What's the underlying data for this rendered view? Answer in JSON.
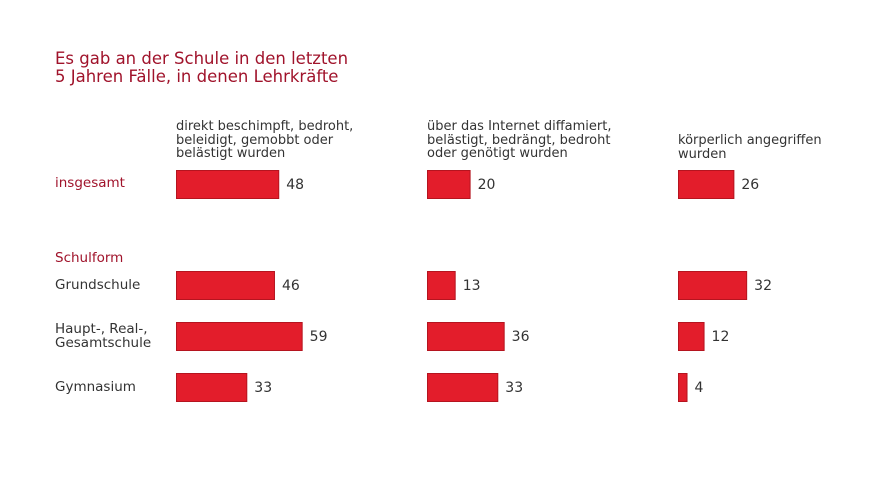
{
  "title": "Es gab an der Schule in den letzten\n5 Jahren Fälle, in denen Lehrkräfte",
  "section_label": "Schulform",
  "colors": {
    "accent": "#a0132b",
    "bar": "#e31d2b",
    "text": "#333333"
  },
  "chart_data": {
    "type": "bar",
    "orientation": "horizontal",
    "title": "Es gab an der Schule in den letzten 5 Jahren Fälle, in denen Lehrkräfte",
    "unit": "percent",
    "columns": [
      "direkt beschimpft, bedroht,\nbeleidigt, gemobbt oder\nbelästigt wurden",
      "über das Internet diffamiert,\nbelästigt, bedrängt, bedroht\noder genötigt wurden",
      "körperlich angegriffen\nwurden"
    ],
    "categories": [
      "insgesamt",
      "Grundschule",
      "Haupt-, Real-,\nGesamtschule",
      "Gymnasium"
    ],
    "series": [
      {
        "name": "direkt beschimpft, bedroht, beleidigt, gemobbt oder belästigt wurden",
        "values": [
          48,
          46,
          59,
          33
        ]
      },
      {
        "name": "über das Internet diffamiert, belästigt, bedrängt, bedroht oder genötigt wurden",
        "values": [
          20,
          13,
          36,
          33
        ]
      },
      {
        "name": "körperlich angegriffen wurden",
        "values": [
          26,
          32,
          12,
          4
        ]
      }
    ],
    "group_label": "Schulform",
    "xlabel": "",
    "ylabel": "",
    "grid": false,
    "legend": "none"
  }
}
